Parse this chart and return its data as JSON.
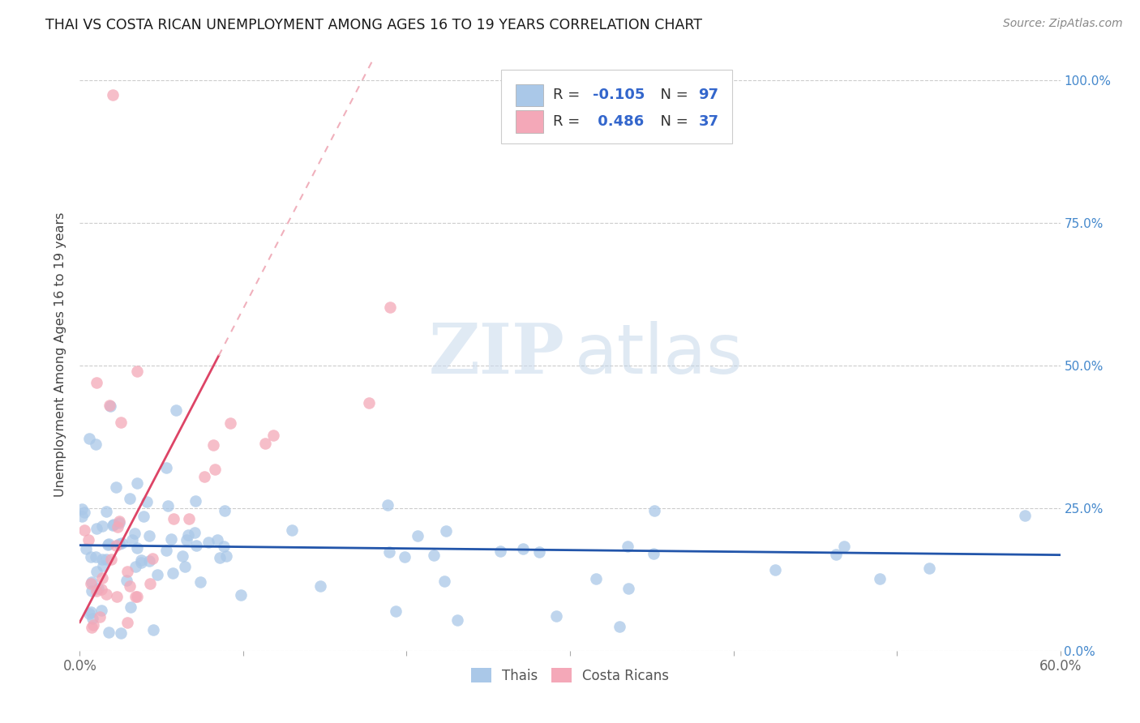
{
  "title": "THAI VS COSTA RICAN UNEMPLOYMENT AMONG AGES 16 TO 19 YEARS CORRELATION CHART",
  "source": "Source: ZipAtlas.com",
  "ylabel": "Unemployment Among Ages 16 to 19 years",
  "background_color": "#ffffff",
  "grid_color": "#cccccc",
  "thai_color": "#aac8e8",
  "costa_rican_color": "#f4a8b8",
  "thai_line_color": "#2255aa",
  "costa_rican_line_color": "#dd4466",
  "costa_rican_dashed_color": "#f0b0bc",
  "xlim": [
    0.0,
    0.6
  ],
  "ylim": [
    0.0,
    1.04
  ],
  "yticks": [
    0.0,
    0.25,
    0.5,
    0.75,
    1.0
  ],
  "ytick_labels": [
    "0.0%",
    "25.0%",
    "50.0%",
    "75.0%",
    "100.0%"
  ],
  "xtick_left_label": "0.0%",
  "xtick_right_label": "60.0%",
  "legend_r1_text": "R = -0.105",
  "legend_n1_text": "N = 97",
  "legend_r2_text": "R =  0.486",
  "legend_n2_text": "N = 37",
  "legend_text_color": "#333333",
  "legend_value_color": "#3366cc",
  "watermark_color_zip": "#c5d8ee",
  "watermark_color_atlas": "#b0c8e2",
  "bottom_legend_thais": "Thais",
  "bottom_legend_cr": "Costa Ricans"
}
